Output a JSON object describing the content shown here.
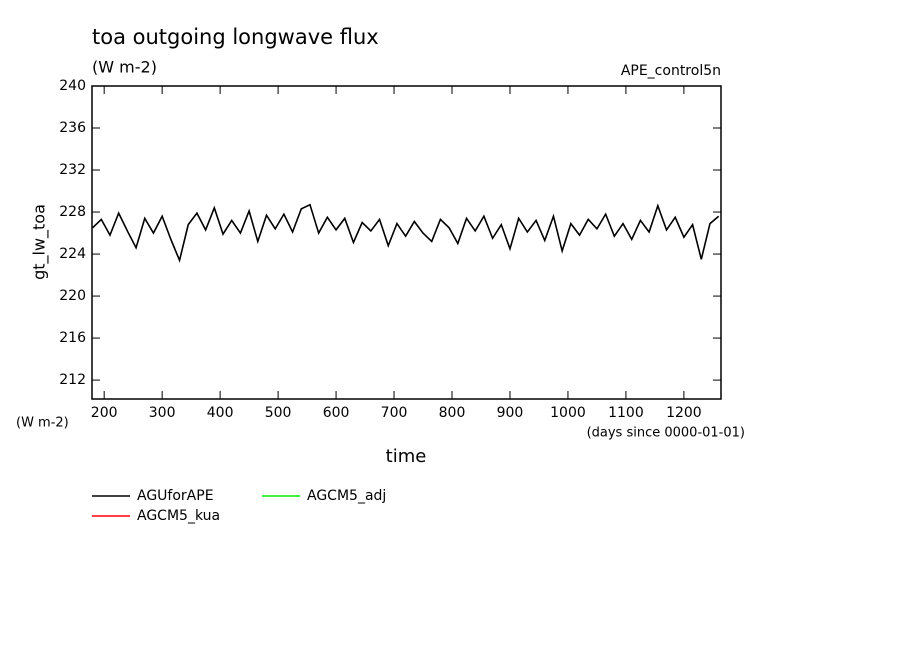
{
  "chart_data": {
    "type": "line",
    "title": "toa outgoing longwave flux",
    "subtitle": "(W m-2)",
    "annotation": "APE_control5n",
    "ylabel": "gt_lw_toa",
    "yunits": "(W m-2)",
    "xlabel": "time",
    "xunits": "(days since 0000-01-01)",
    "x": [
      180,
      195,
      210,
      225,
      240,
      255,
      270,
      285,
      300,
      315,
      330,
      345,
      360,
      375,
      390,
      405,
      420,
      435,
      450,
      465,
      480,
      495,
      510,
      525,
      540,
      555,
      570,
      585,
      600,
      615,
      630,
      645,
      660,
      675,
      690,
      705,
      720,
      735,
      750,
      765,
      780,
      795,
      810,
      825,
      840,
      855,
      870,
      885,
      900,
      915,
      930,
      945,
      960,
      975,
      990,
      1005,
      1020,
      1035,
      1050,
      1065,
      1080,
      1095,
      1110,
      1125,
      1140,
      1155,
      1170,
      1185,
      1200,
      1215,
      1230,
      1245,
      1260
    ],
    "series": [
      {
        "name": "AGUforAPE",
        "color": "#000000",
        "values": [
          226.5,
          227.3,
          225.8,
          227.9,
          226.2,
          224.6,
          227.4,
          226.0,
          227.6,
          225.4,
          223.4,
          226.8,
          227.9,
          226.3,
          228.4,
          225.9,
          227.2,
          226.0,
          228.1,
          225.2,
          227.7,
          226.4,
          227.8,
          226.1,
          228.3,
          228.7,
          226.0,
          227.5,
          226.3,
          227.4,
          225.1,
          227.0,
          226.2,
          227.3,
          224.8,
          226.9,
          225.7,
          227.1,
          226.0,
          225.2,
          227.3,
          226.5,
          225.0,
          227.4,
          226.2,
          227.6,
          225.5,
          226.8,
          224.5,
          227.4,
          226.1,
          227.2,
          225.3,
          227.6,
          224.3,
          226.9,
          225.8,
          227.3,
          226.4,
          227.8,
          225.7,
          226.9,
          225.4,
          227.2,
          226.1,
          228.6,
          226.3,
          227.5,
          225.6,
          226.8,
          223.5,
          226.9,
          227.6
        ]
      },
      {
        "name": "AGCM5_kua",
        "color": "#ff0000",
        "values": [
          null,
          null,
          null,
          null,
          null,
          null,
          null,
          null,
          null,
          null,
          null,
          null,
          null,
          null,
          null,
          null,
          null,
          null,
          null,
          null,
          null,
          null,
          null,
          null,
          null,
          null,
          null,
          null,
          null,
          null,
          null,
          null,
          null,
          null,
          null,
          null,
          null,
          null,
          null,
          null,
          null,
          null,
          null,
          null,
          null,
          null,
          null,
          null,
          null,
          null,
          null,
          null,
          null,
          null,
          null,
          null,
          null,
          null,
          null,
          null,
          null,
          null,
          null,
          null,
          null,
          null,
          null,
          null,
          null,
          null,
          null,
          null,
          null
        ]
      },
      {
        "name": "AGCM5_adj",
        "color": "#00ee00",
        "values": [
          null,
          null,
          null,
          null,
          null,
          null,
          null,
          null,
          null,
          null,
          null,
          null,
          null,
          null,
          null,
          null,
          null,
          null,
          null,
          null,
          null,
          null,
          null,
          null,
          null,
          null,
          null,
          null,
          null,
          null,
          null,
          null,
          null,
          null,
          null,
          null,
          null,
          null,
          null,
          null,
          null,
          null,
          null,
          null,
          null,
          null,
          null,
          null,
          null,
          null,
          null,
          null,
          null,
          null,
          null,
          null,
          null,
          null,
          null,
          null,
          null,
          null,
          null,
          null,
          null,
          null,
          null,
          null,
          null,
          null,
          null,
          null,
          null
        ]
      }
    ],
    "xlim": [
      179,
      1264
    ],
    "xticks": [
      200,
      300,
      400,
      500,
      600,
      700,
      800,
      900,
      1000,
      1100,
      1200
    ],
    "ylim": [
      210.2,
      240
    ],
    "yticks": [
      212,
      216,
      220,
      224,
      228,
      232,
      236,
      240
    ]
  }
}
